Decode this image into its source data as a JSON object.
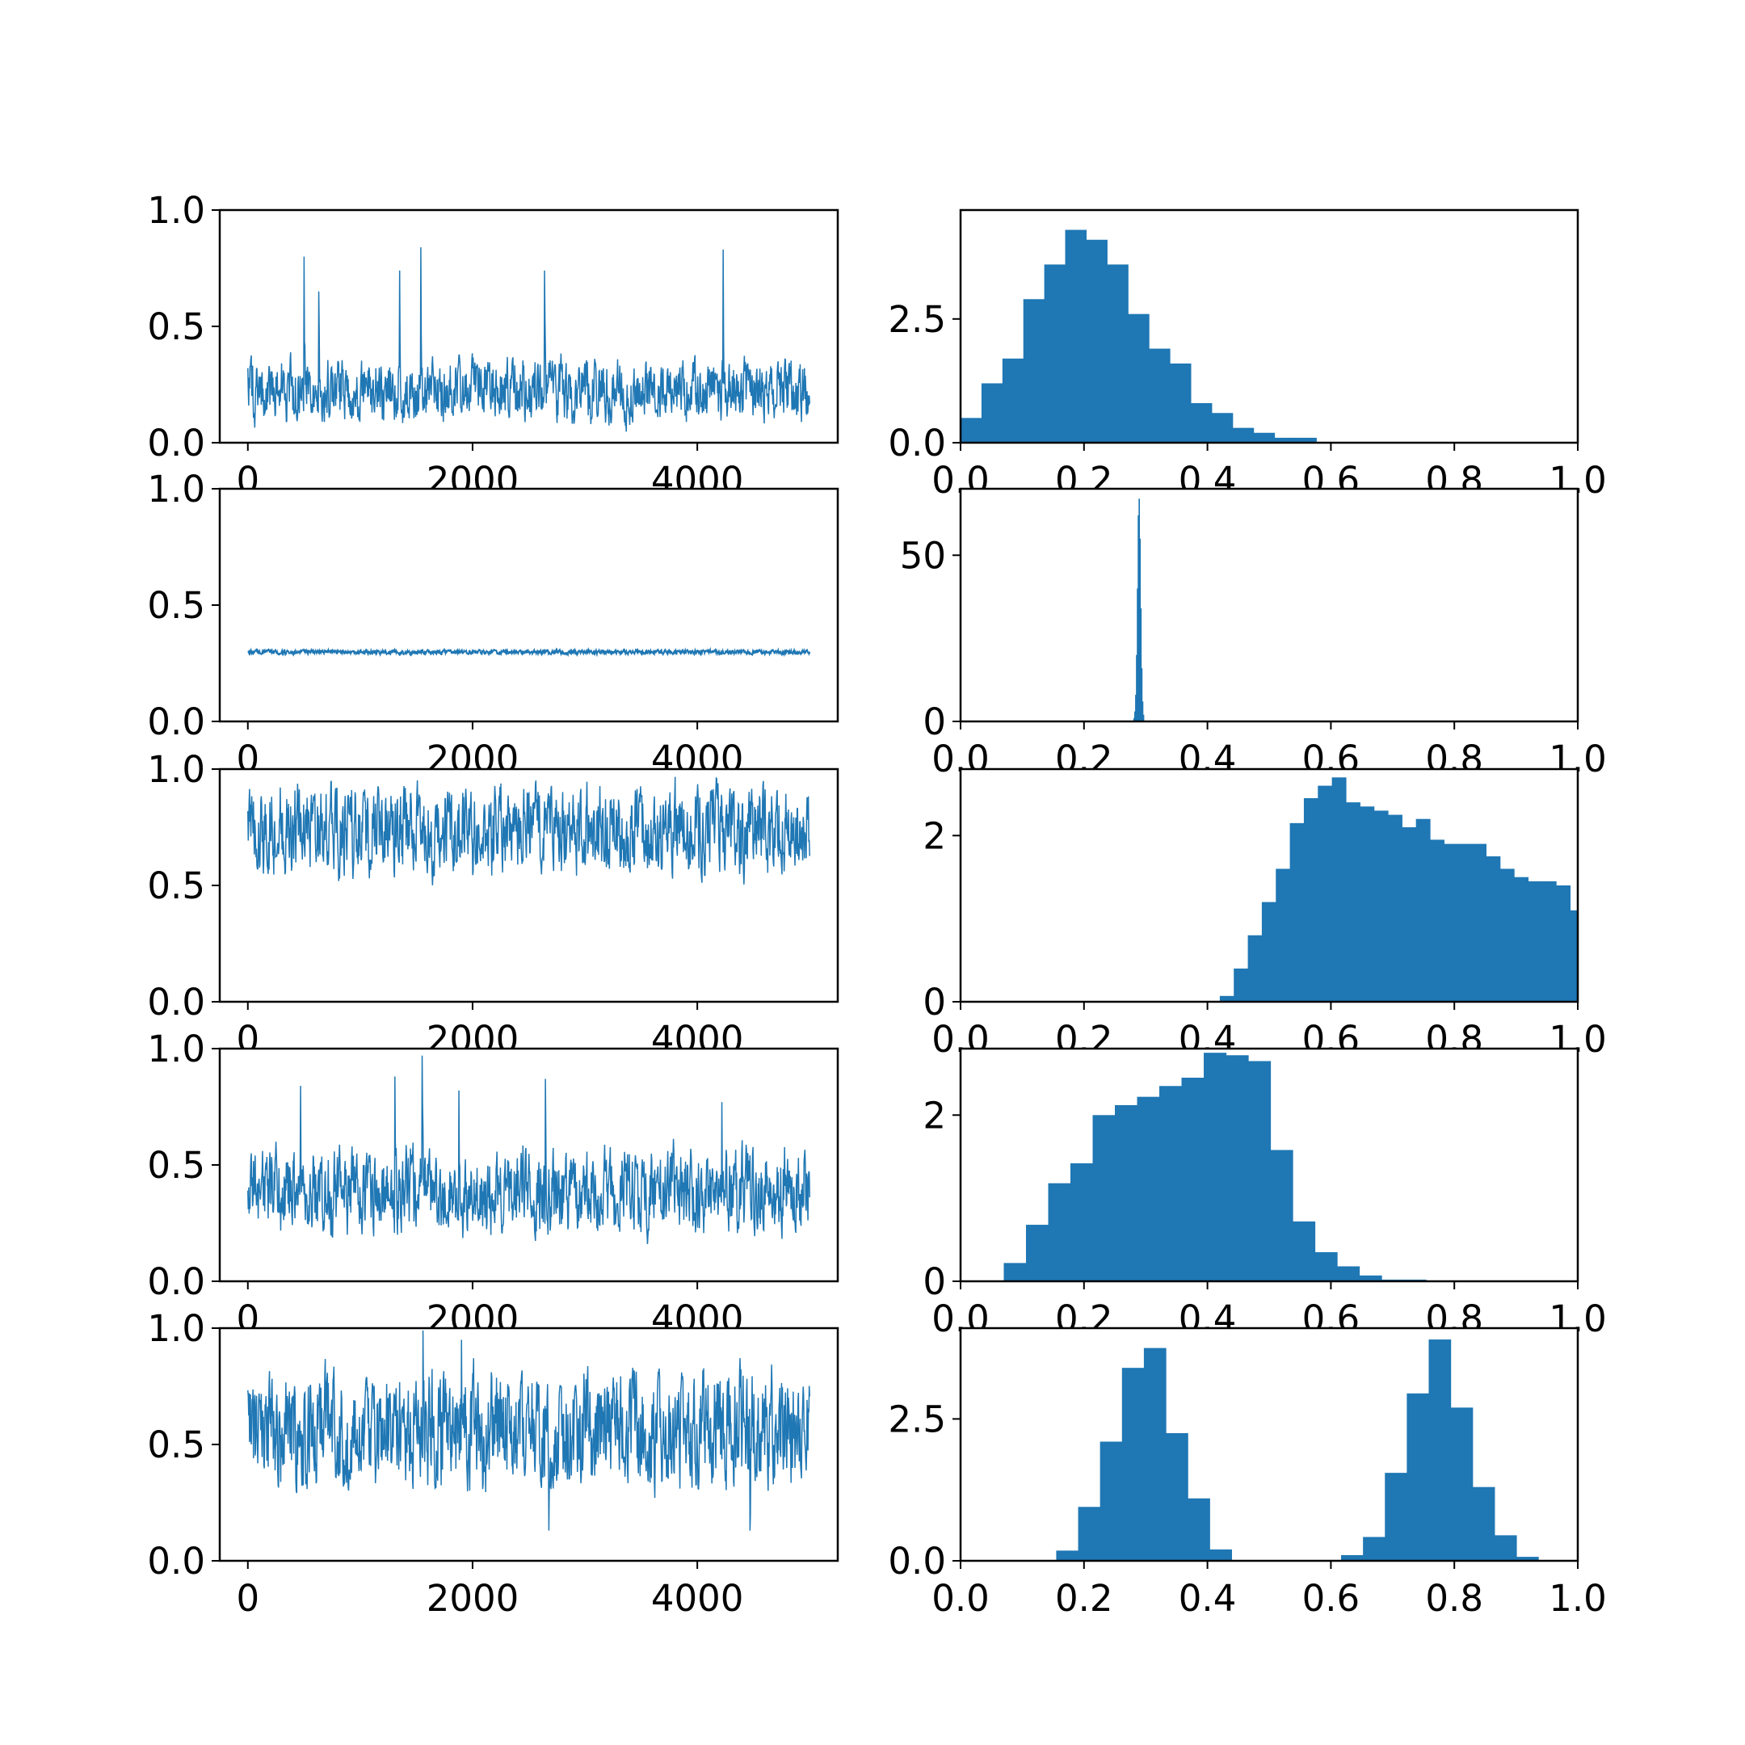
{
  "chart_data": [
    {
      "type": "line",
      "panel": "trace",
      "row": 1,
      "x_range": [
        0,
        5000
      ],
      "xlim": [
        -250,
        5250
      ],
      "ylim": [
        0,
        1
      ],
      "xticks": [
        0,
        2000,
        4000
      ],
      "xtick_labels": [
        "0",
        "2000",
        "4000"
      ],
      "yticks": [
        0,
        0.5,
        1
      ],
      "ytick_labels": [
        "0.0",
        "0.5",
        "1.0"
      ],
      "trace": {
        "center": 0.21,
        "lower": 0.06,
        "upper": 0.4,
        "spikes": [
          {
            "x": 500,
            "y": 0.8
          },
          {
            "x": 1540,
            "y": 0.84
          },
          {
            "x": 4230,
            "y": 0.83
          },
          {
            "x": 2640,
            "y": 0.74
          },
          {
            "x": 1350,
            "y": 0.74
          },
          {
            "x": 630,
            "y": 0.65
          }
        ]
      },
      "color": "#1f77b4"
    },
    {
      "type": "bar",
      "panel": "histogram",
      "row": 1,
      "xlim": [
        0,
        1
      ],
      "ylim": [
        0,
        4.7
      ],
      "xticks": [
        0,
        0.2,
        0.4,
        0.6,
        0.8,
        1.0
      ],
      "xtick_labels": [
        "0.0",
        "0.2",
        "0.4",
        "0.6",
        "0.8",
        "1.0"
      ],
      "yticks": [
        0,
        2.5
      ],
      "ytick_labels": [
        "0.0",
        "2.5"
      ],
      "bin_start": 0.0,
      "bin_width": 0.0339,
      "values": [
        0.5,
        1.2,
        1.7,
        2.9,
        3.6,
        4.3,
        4.1,
        3.6,
        2.6,
        1.9,
        1.6,
        0.8,
        0.6,
        0.3,
        0.2,
        0.1,
        0.1
      ],
      "color": "#1f77b4"
    },
    {
      "type": "line",
      "panel": "trace",
      "row": 2,
      "x_range": [
        0,
        5000
      ],
      "xlim": [
        -250,
        5250
      ],
      "ylim": [
        0,
        1
      ],
      "xticks": [
        0,
        2000,
        4000
      ],
      "xtick_labels": [
        "0",
        "2000",
        "4000"
      ],
      "yticks": [
        0,
        0.5,
        1
      ],
      "ytick_labels": [
        "0.0",
        "0.5",
        "1.0"
      ],
      "trace": {
        "center": 0.298,
        "lower": 0.285,
        "upper": 0.31,
        "spikes": []
      },
      "color": "#1f77b4"
    },
    {
      "type": "bar",
      "panel": "histogram",
      "row": 2,
      "xlim": [
        0,
        1
      ],
      "ylim": [
        0,
        70
      ],
      "xticks": [
        0,
        0.2,
        0.4,
        0.6,
        0.8,
        1.0
      ],
      "xtick_labels": [
        "0.0",
        "0.2",
        "0.4",
        "0.6",
        "0.8",
        "1.0"
      ],
      "yticks": [
        0,
        50
      ],
      "ytick_labels": [
        "0",
        "50"
      ],
      "bin_start": 0.28,
      "bin_width": 0.0014,
      "values": [
        1,
        3,
        8,
        20,
        40,
        62,
        67,
        55,
        34,
        16,
        6,
        2
      ],
      "color": "#1f77b4"
    },
    {
      "type": "line",
      "panel": "trace",
      "row": 3,
      "x_range": [
        0,
        5000
      ],
      "xlim": [
        -250,
        5250
      ],
      "ylim": [
        0,
        1
      ],
      "xticks": [
        0,
        2000,
        4000
      ],
      "xtick_labels": [
        "0",
        "2000",
        "4000"
      ],
      "yticks": [
        0,
        0.5,
        1
      ],
      "ytick_labels": [
        "0.0",
        "0.5",
        "1.0"
      ],
      "trace": {
        "center": 0.73,
        "lower": 0.5,
        "upper": 0.98,
        "spikes": []
      },
      "color": "#1f77b4"
    },
    {
      "type": "bar",
      "panel": "histogram",
      "row": 3,
      "xlim": [
        0,
        1
      ],
      "ylim": [
        0,
        2.8
      ],
      "xticks": [
        0,
        0.2,
        0.4,
        0.6,
        0.8,
        1.0
      ],
      "xtick_labels": [
        "0.0",
        "0.2",
        "0.4",
        "0.6",
        "0.8",
        "1.0"
      ],
      "yticks": [
        0,
        2
      ],
      "ytick_labels": [
        "0",
        "2"
      ],
      "bin_start": 0.42,
      "bin_width": 0.0227,
      "values": [
        0.07,
        0.4,
        0.8,
        1.2,
        1.6,
        2.15,
        2.45,
        2.6,
        2.7,
        2.4,
        2.35,
        2.3,
        2.25,
        2.1,
        2.2,
        1.95,
        1.9,
        1.9,
        1.9,
        1.75,
        1.6,
        1.5,
        1.45,
        1.45,
        1.4,
        1.1
      ],
      "color": "#1f77b4"
    },
    {
      "type": "line",
      "panel": "trace",
      "row": 4,
      "x_range": [
        0,
        5000
      ],
      "xlim": [
        -250,
        5250
      ],
      "ylim": [
        0,
        1
      ],
      "xticks": [
        0,
        2000,
        4000
      ],
      "xtick_labels": [
        "0",
        "2000",
        "4000"
      ],
      "yticks": [
        0,
        0.5,
        1
      ],
      "ytick_labels": [
        "0.0",
        "0.5",
        "1.0"
      ],
      "trace": {
        "center": 0.37,
        "lower": 0.16,
        "upper": 0.62,
        "spikes": [
          {
            "x": 1550,
            "y": 0.97
          },
          {
            "x": 1310,
            "y": 0.88
          },
          {
            "x": 2650,
            "y": 0.87
          },
          {
            "x": 470,
            "y": 0.84
          },
          {
            "x": 1880,
            "y": 0.82
          },
          {
            "x": 4220,
            "y": 0.77
          }
        ]
      },
      "color": "#1f77b4"
    },
    {
      "type": "bar",
      "panel": "histogram",
      "row": 4,
      "xlim": [
        0,
        1
      ],
      "ylim": [
        0,
        2.8
      ],
      "xticks": [
        0,
        0.2,
        0.4,
        0.6,
        0.8,
        1.0
      ],
      "xtick_labels": [
        "0.0",
        "0.2",
        "0.4",
        "0.6",
        "0.8",
        "1.0"
      ],
      "yticks": [
        0,
        2
      ],
      "ytick_labels": [
        "0",
        "2"
      ],
      "bin_start": 0.07,
      "bin_width": 0.036,
      "values": [
        0.22,
        0.68,
        1.18,
        1.42,
        2.0,
        2.12,
        2.22,
        2.35,
        2.45,
        2.75,
        2.72,
        2.65,
        1.58,
        0.72,
        0.35,
        0.18,
        0.07,
        0.02,
        0.02,
        0.0,
        0.0
      ],
      "color": "#1f77b4"
    },
    {
      "type": "line",
      "panel": "trace",
      "row": 5,
      "x_range": [
        0,
        5000
      ],
      "xlim": [
        -250,
        5250
      ],
      "ylim": [
        0,
        1
      ],
      "xticks": [
        0,
        2000,
        4000
      ],
      "xtick_labels": [
        "0",
        "2000",
        "4000"
      ],
      "yticks": [
        0,
        0.5,
        1
      ],
      "ytick_labels": [
        "0.0",
        "0.5",
        "1.0"
      ],
      "trace": {
        "center": 0.55,
        "lower": 0.25,
        "upper": 0.87,
        "spikes": [
          {
            "x": 1560,
            "y": 0.99
          },
          {
            "x": 1900,
            "y": 0.95
          },
          {
            "x": 2680,
            "y": 0.13
          },
          {
            "x": 4470,
            "y": 0.13
          }
        ]
      },
      "color": "#1f77b4"
    },
    {
      "type": "bar",
      "panel": "histogram",
      "row": 5,
      "xlim": [
        0,
        1
      ],
      "ylim": [
        0,
        4.1
      ],
      "xticks": [
        0,
        0.2,
        0.4,
        0.6,
        0.8,
        1.0
      ],
      "xtick_labels": [
        "0.0",
        "0.2",
        "0.4",
        "0.6",
        "0.8",
        "1.0"
      ],
      "yticks": [
        0,
        2.5
      ],
      "ytick_labels": [
        "0.0",
        "2.5"
      ],
      "bin_start": 0.155,
      "bin_width": 0.0355,
      "values": [
        0.18,
        0.95,
        2.1,
        3.4,
        3.75,
        2.25,
        1.1,
        0.2,
        0.0,
        0.0,
        0.0,
        0.0,
        0.0,
        0.1,
        0.42,
        1.55,
        2.95,
        3.9,
        2.7,
        1.3,
        0.45,
        0.07
      ],
      "color": "#1f77b4"
    }
  ]
}
